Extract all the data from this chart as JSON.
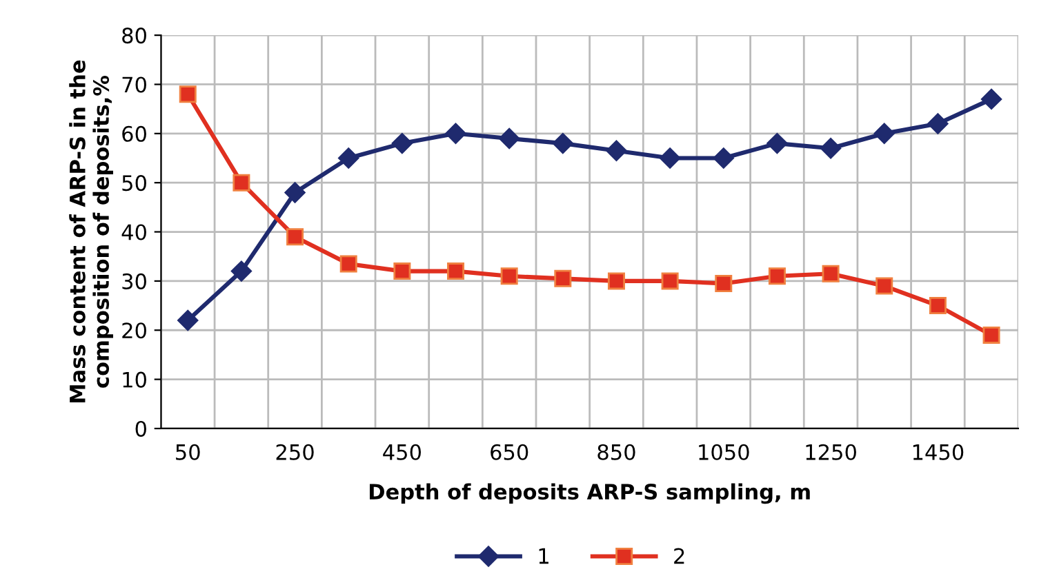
{
  "chart_data": {
    "type": "line",
    "xlabel": "Depth of deposits ARP-S sampling, m",
    "ylabel": "Mass content of ARP-S in the\ncomposition of deposits,%",
    "categories": [
      "50",
      null,
      "250",
      null,
      "450",
      null,
      "650",
      null,
      "850",
      null,
      "1050",
      null,
      "1250",
      null,
      "1450",
      null
    ],
    "series": [
      {
        "name": "1",
        "color": "#1f2a6e",
        "marker": "diamond",
        "values": [
          22,
          32,
          48,
          55,
          58,
          60,
          59,
          58,
          56.5,
          55,
          55,
          58,
          57,
          60,
          62,
          67
        ]
      },
      {
        "name": "2",
        "color": "#e03020",
        "marker": "square",
        "values": [
          68,
          50,
          39,
          33.5,
          32,
          32,
          31,
          30.5,
          30,
          30,
          29.5,
          31,
          31.5,
          29,
          25,
          19
        ]
      }
    ],
    "ylim": [
      0,
      80
    ],
    "yticks": [
      0,
      10,
      20,
      30,
      40,
      50,
      60,
      70,
      80
    ],
    "grid": true,
    "legend": "bottom",
    "line_style": "solid"
  }
}
